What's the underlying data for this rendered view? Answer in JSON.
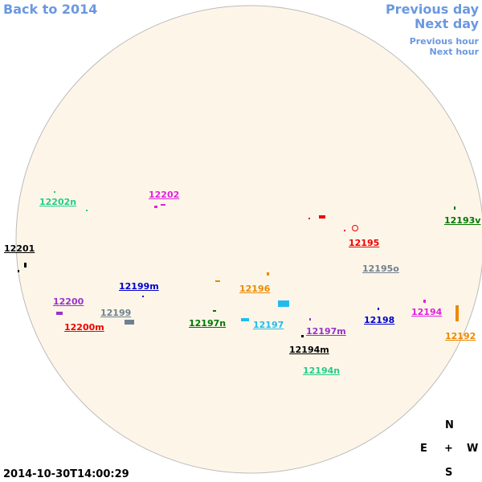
{
  "nav": {
    "back": "Back to 2014",
    "previous_day": "Previous day",
    "next_day": "Next day",
    "previous_hour": "Previous hour",
    "next_hour": "Next hour"
  },
  "timestamp": "2014-10-30T14:00:29",
  "compass": {
    "north": "N",
    "east": "E",
    "center": "+",
    "west": "W",
    "south": "S"
  },
  "regions": [
    {
      "label": "12202n",
      "color": "#22cc88"
    },
    {
      "label": "12202",
      "color": "#e020e0"
    },
    {
      "label": "12201",
      "color": "#000000"
    },
    {
      "label": "12193v",
      "color": "#007700"
    },
    {
      "label": "12195",
      "color": "#ee0000"
    },
    {
      "label": "12195o",
      "color": "#708090"
    },
    {
      "label": "12199m",
      "color": "#0000cc"
    },
    {
      "label": "12196",
      "color": "#ee8800"
    },
    {
      "label": "12200",
      "color": "#9933cc"
    },
    {
      "label": "12199",
      "color": "#708090"
    },
    {
      "label": "12200m",
      "color": "#ee0000"
    },
    {
      "label": "12197n",
      "color": "#007700"
    },
    {
      "label": "12197",
      "color": "#22bbee"
    },
    {
      "label": "12194",
      "color": "#e020e0"
    },
    {
      "label": "12198",
      "color": "#0000cc"
    },
    {
      "label": "12197m",
      "color": "#9933cc"
    },
    {
      "label": "12192",
      "color": "#ee8800"
    },
    {
      "label": "12194m",
      "color": "#000000"
    },
    {
      "label": "12194n",
      "color": "#22cc88"
    }
  ]
}
